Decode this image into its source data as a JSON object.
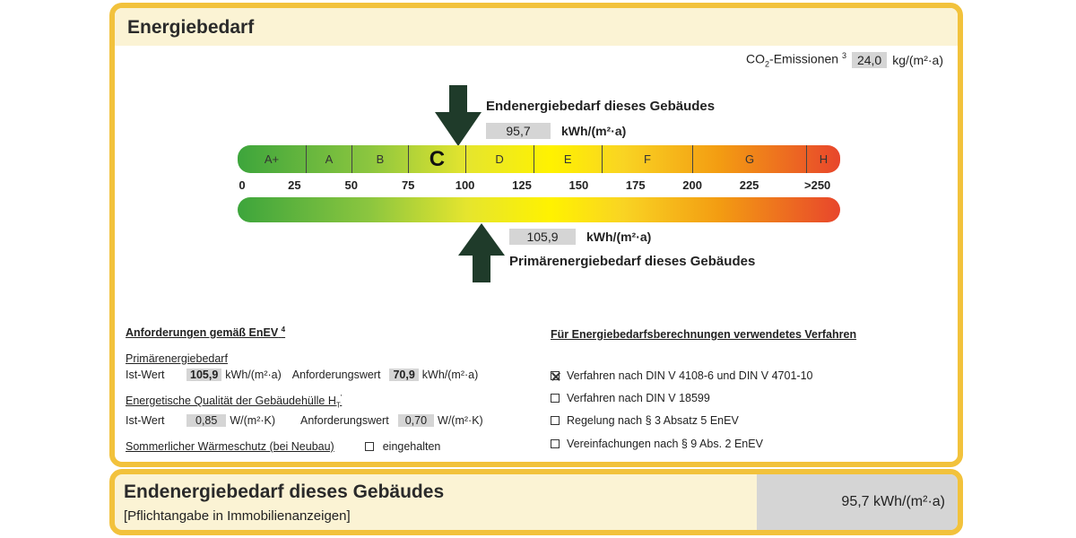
{
  "header": {
    "title": "Energiebedarf"
  },
  "co2": {
    "label": "CO",
    "sub": "2",
    "suffix": "-Emissionen",
    "footnote": "3",
    "value": "24,0",
    "unit": "kg/(m²·a)"
  },
  "endenergie": {
    "label": "Endenergiebedarf dieses Gebäudes",
    "value": "95,7",
    "unit": "kWh/(m²·a)",
    "numeric": 95.7
  },
  "primaerenergie": {
    "label": "Primärenergiebedarf dieses Gebäudes",
    "value": "105,9",
    "unit": "kWh/(m²·a)",
    "numeric": 105.9
  },
  "scale": {
    "classes": [
      {
        "label": "A+",
        "from": 0,
        "to": 30
      },
      {
        "label": "A",
        "from": 30,
        "to": 50
      },
      {
        "label": "B",
        "from": 50,
        "to": 75
      },
      {
        "label": "C",
        "from": 75,
        "to": 100
      },
      {
        "label": "D",
        "from": 100,
        "to": 130
      },
      {
        "label": "E",
        "from": 130,
        "to": 160
      },
      {
        "label": "F",
        "from": 160,
        "to": 200
      },
      {
        "label": "G",
        "from": 200,
        "to": 250
      },
      {
        "label": "H",
        "from": 250,
        "to": 265
      }
    ],
    "active_class": "C",
    "ticks": [
      "0",
      "25",
      "50",
      "75",
      "100",
      "125",
      "150",
      "175",
      "200",
      "225",
      ">250"
    ]
  },
  "anforderungen": {
    "heading": "Anforderungen gemäß EnEV",
    "heading_footnote": "4",
    "primaer_heading": "Primärenergiebedarf",
    "primaer_ist_label": "Ist-Wert",
    "primaer_ist_value": "105,9",
    "primaer_unit": "kWh/(m²·a)",
    "primaer_anf_label": "Anforderungswert",
    "primaer_anf_value": "70,9",
    "huelle_heading": "Energetische Qualität der Gebäudehülle H",
    "huelle_heading_sub": "T",
    "huelle_heading_sup": "'",
    "huelle_ist_label": "Ist-Wert",
    "huelle_ist_value": "0,85",
    "huelle_unit": "W/(m²·K)",
    "huelle_anf_label": "Anforderungswert",
    "huelle_anf_value": "0,70",
    "sommer_label": "Sommerlicher Wärmeschutz (bei Neubau)",
    "sommer_checkbox_label": "eingehalten"
  },
  "verfahren": {
    "heading": "Für Energiebedarfsberechnungen verwendetes Verfahren",
    "items": [
      {
        "label": "Verfahren nach DIN V 4108-6 und DIN V 4701-10",
        "checked": true
      },
      {
        "label": "Verfahren nach DIN V 18599",
        "checked": false
      },
      {
        "label": "Regelung nach § 3 Absatz 5 EnEV",
        "checked": false
      },
      {
        "label": "Vereinfachungen nach § 9 Abs. 2 EnEV",
        "checked": false
      }
    ]
  },
  "footer": {
    "title": "Endenergiebedarf dieses Gebäudes",
    "subtitle": "[Pflichtangabe in Immobilienanzeigen]",
    "value": "95,7 kWh/(m²·a)"
  },
  "colors": {
    "frame": "#f2c23c",
    "header_bg": "#fbf3d4",
    "value_box": "#d5d5d5",
    "arrow": "#1f3b2a"
  }
}
